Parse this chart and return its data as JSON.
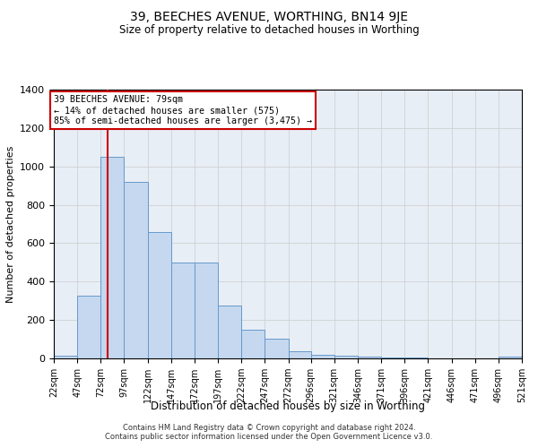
{
  "title1": "39, BEECHES AVENUE, WORTHING, BN14 9JE",
  "title2": "Size of property relative to detached houses in Worthing",
  "xlabel": "Distribution of detached houses by size in Worthing",
  "ylabel": "Number of detached properties",
  "bin_edges": [
    22,
    47,
    72,
    97,
    122,
    147,
    172,
    197,
    222,
    247,
    272,
    296,
    321,
    346,
    371,
    396,
    421,
    446,
    471,
    496,
    521
  ],
  "bin_labels": [
    "22sqm",
    "47sqm",
    "72sqm",
    "97sqm",
    "122sqm",
    "147sqm",
    "172sqm",
    "197sqm",
    "222sqm",
    "247sqm",
    "272sqm",
    "296sqm",
    "321sqm",
    "346sqm",
    "371sqm",
    "396sqm",
    "421sqm",
    "446sqm",
    "471sqm",
    "496sqm",
    "521sqm"
  ],
  "bar_heights": [
    15,
    325,
    1050,
    920,
    660,
    500,
    500,
    275,
    150,
    105,
    38,
    20,
    15,
    8,
    3,
    3,
    2,
    2,
    1,
    8
  ],
  "bar_color": "#c5d8ef",
  "bar_edge_color": "#6699cc",
  "property_size": 79,
  "annotation_line1": "39 BEECHES AVENUE: 79sqm",
  "annotation_line2": "← 14% of detached houses are smaller (575)",
  "annotation_line3": "85% of semi-detached houses are larger (3,475) →",
  "vline_color": "#cc0000",
  "annotation_box_color": "#ffffff",
  "annotation_box_edge": "#cc0000",
  "ylim": [
    0,
    1400
  ],
  "yticks": [
    0,
    200,
    400,
    600,
    800,
    1000,
    1200,
    1400
  ],
  "footer1": "Contains HM Land Registry data © Crown copyright and database right 2024.",
  "footer2": "Contains public sector information licensed under the Open Government Licence v3.0.",
  "background_color": "#e8eef5",
  "title1_fontsize": 10,
  "title2_fontsize": 8.5
}
